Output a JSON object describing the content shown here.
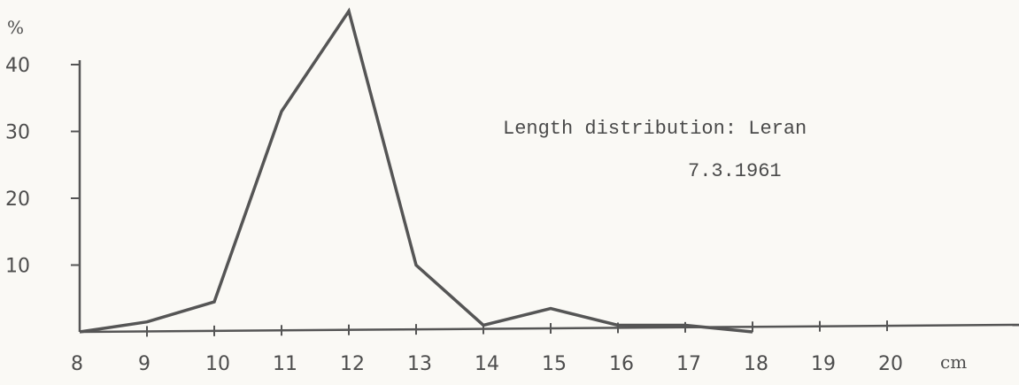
{
  "chart_data": {
    "type": "line",
    "title": "Length distribution: Leran",
    "subtitle": "7.3.1961",
    "y_unit": "%",
    "x_unit": "cm",
    "xlim": [
      8,
      21
    ],
    "ylim": [
      0,
      48
    ],
    "x_ticks": [
      8,
      9,
      10,
      11,
      12,
      13,
      14,
      15,
      16,
      17,
      18,
      19,
      20
    ],
    "y_ticks": [
      10,
      20,
      30,
      40
    ],
    "grid": false,
    "series": [
      {
        "x": [
          8,
          9,
          10,
          11,
          12,
          13,
          14,
          15,
          16,
          17,
          18
        ],
        "y": [
          0,
          1.5,
          4.5,
          33,
          48,
          10,
          1,
          3.5,
          1,
          1,
          0
        ]
      }
    ],
    "line_color": "#555555"
  }
}
